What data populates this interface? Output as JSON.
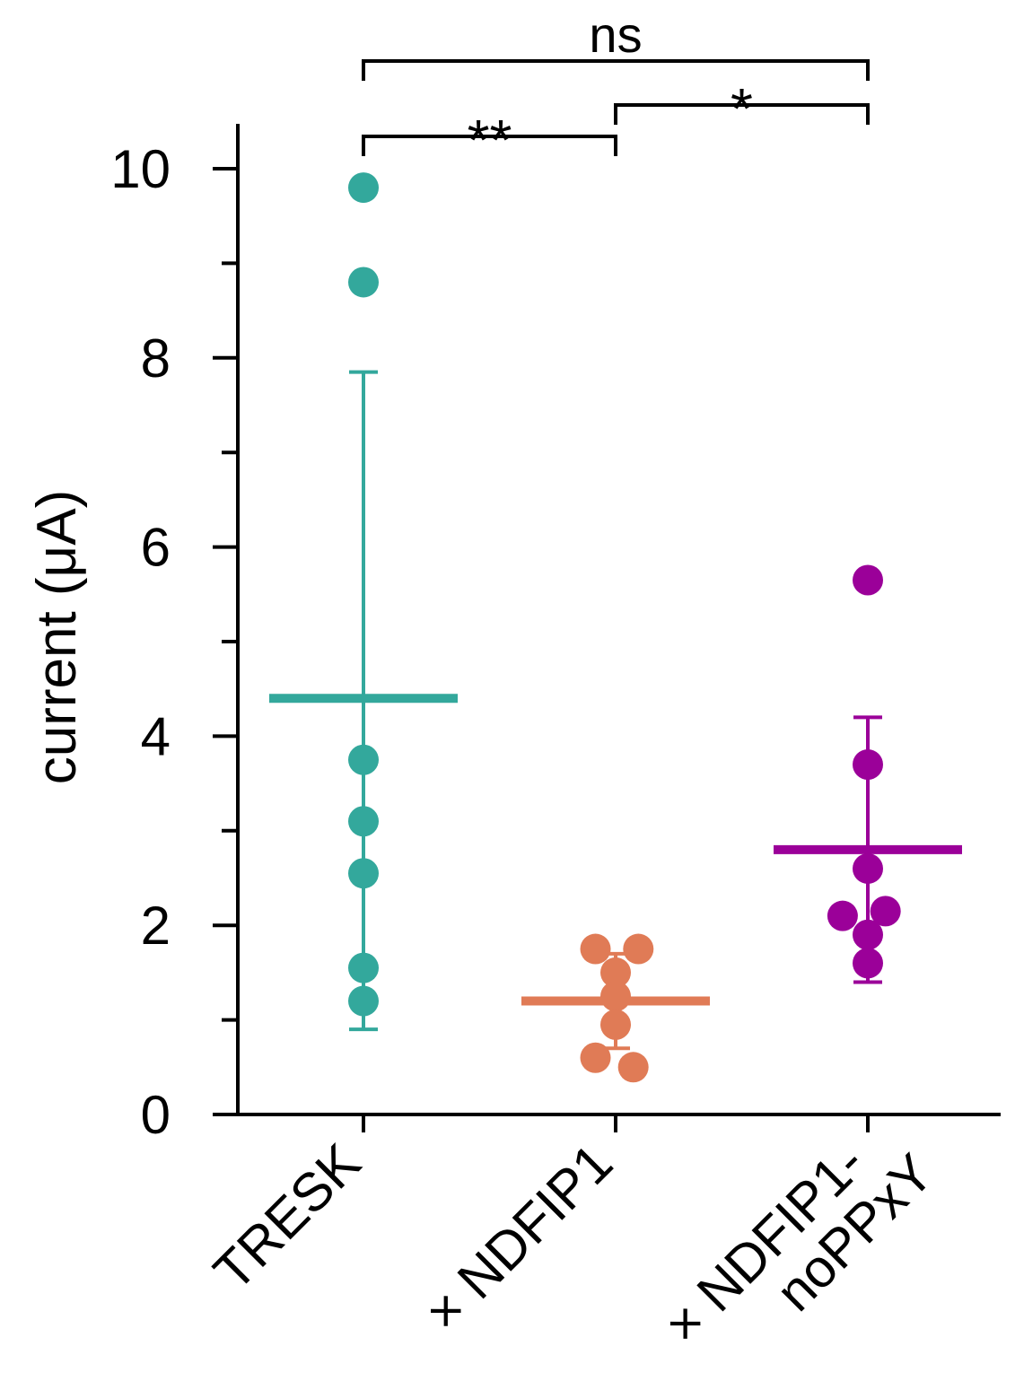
{
  "chart_data": {
    "type": "scatter",
    "ylabel": "current (μA)",
    "ylim": [
      0,
      10.5
    ],
    "yticks": [
      0,
      2,
      4,
      6,
      8,
      10
    ],
    "yticks_minor": [
      1,
      3,
      5,
      7,
      9
    ],
    "yticks_minor_labels": false,
    "grid": false,
    "legend": "none",
    "categories": [
      {
        "label": "TRESK",
        "lines": [
          "TRESK"
        ]
      },
      {
        "label": "+ NDFIP1",
        "lines": [
          "× NDFIP1"
        ]
      },
      {
        "label": "+ NDFIP1-noPPxY",
        "lines": [
          "× NDFIP1-",
          "noPPxY"
        ]
      }
    ],
    "series": [
      {
        "color": "#33a89c",
        "points": [
          9.8,
          8.8,
          3.75,
          3.1,
          2.55,
          1.55,
          1.2
        ],
        "mean": 4.4,
        "error": [
          0.9,
          7.85
        ]
      },
      {
        "color": "#e07b56",
        "points": [
          1.75,
          1.75,
          1.5,
          1.25,
          0.95,
          0.6,
          0.5
        ],
        "point_offsets": [
          -0.08,
          0.09,
          0,
          0,
          0,
          -0.08,
          0.07
        ],
        "mean": 1.2,
        "error": [
          0.7,
          1.7
        ]
      },
      {
        "color": "#9b0099",
        "points": [
          5.65,
          3.7,
          2.6,
          2.1,
          2.15,
          1.9,
          1.6
        ],
        "point_offsets": [
          0,
          0,
          0,
          -0.1,
          0.07,
          0,
          0
        ],
        "mean": 2.8,
        "error": [
          1.4,
          4.2
        ]
      }
    ],
    "comparisons": [
      {
        "from": 0,
        "to": 1,
        "label": "**"
      },
      {
        "from": 1,
        "to": 2,
        "label": "*"
      },
      {
        "from": 0,
        "to": 2,
        "label": "ns"
      }
    ]
  }
}
